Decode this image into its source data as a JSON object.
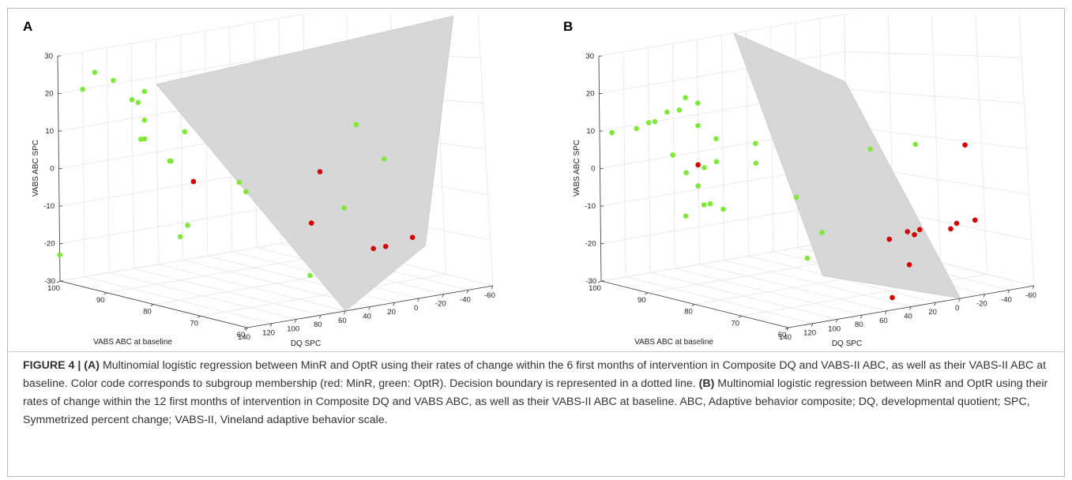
{
  "panels": [
    {
      "letter": "A",
      "chart_data": {
        "type": "scatter",
        "projection": "3d",
        "xlabel": "DQ SPC",
        "ylabel": "VABS ABC at baseline",
        "zlabel": "VABS ABC SPC",
        "xlim": [
          -60,
          140
        ],
        "ylim": [
          60,
          100
        ],
        "zlim": [
          -30,
          30
        ],
        "x_ticks": [
          140,
          120,
          100,
          80,
          60,
          40,
          20,
          0,
          -20,
          -40,
          -60
        ],
        "y_ticks": [
          100,
          90,
          80,
          70,
          60
        ],
        "z_ticks": [
          30,
          20,
          10,
          0,
          -10,
          -20,
          -30
        ],
        "grid": true,
        "colors": {
          "MinR": "#d40000",
          "OptR": "#7fe83a",
          "boundary": "#d3d3d3"
        },
        "decision_boundary": [
          [
            0,
            58,
            -18
          ],
          [
            60,
            60,
            -30
          ],
          [
            -40,
            60,
            30
          ],
          [
            60,
            100,
            18
          ]
        ],
        "series": [
          {
            "name": "MinR",
            "points": [
              [
                75,
                88,
                -5
              ],
              [
                10,
                64,
                -19
              ],
              [
                20,
                64,
                -19
              ],
              [
                -12,
                64,
                -18
              ],
              [
                10,
                80,
                -17
              ],
              [
                60,
                64,
                0
              ]
            ]
          },
          {
            "name": "OptR",
            "points": [
              [
                120,
                100,
                20
              ],
              [
                110,
                100,
                24
              ],
              [
                95,
                100,
                21
              ],
              [
                120,
                86,
                20
              ],
              [
                80,
                100,
                15
              ],
              [
                75,
                100,
                14
              ],
              [
                140,
                75,
                5
              ],
              [
                95,
                94,
                6
              ],
              [
                0,
                72,
                7
              ],
              [
                135,
                75,
                -13
              ],
              [
                110,
                80,
                10
              ],
              [
                125,
                76,
                -11
              ],
              [
                40,
                86,
                -9
              ],
              [
                70,
                100,
                9
              ],
              [
                70,
                100,
                4
              ],
              [
                50,
                100,
                -3
              ],
              [
                60,
                82,
                -5
              ],
              [
                20,
                70,
                -11
              ],
              [
                15,
                62,
                1
              ],
              [
                50,
                70,
                -25
              ],
              [
                140,
                100,
                -23
              ]
            ]
          }
        ]
      }
    },
    {
      "letter": "B",
      "chart_data": {
        "type": "scatter",
        "projection": "3d",
        "xlabel": "DQ SPC",
        "ylabel": "VABS ABC at baseline",
        "zlabel": "VABS ABC SPC",
        "xlim": [
          -60,
          140
        ],
        "ylim": [
          60,
          100
        ],
        "zlim": [
          -30,
          30
        ],
        "x_ticks": [
          140,
          120,
          100,
          80,
          60,
          40,
          20,
          0,
          -20,
          -40,
          -60
        ],
        "y_ticks": [
          100,
          90,
          80,
          70,
          60
        ],
        "z_ticks": [
          30,
          20,
          10,
          0,
          -10,
          -20,
          -30
        ],
        "grid": true,
        "colors": {
          "MinR": "#d40000",
          "OptR": "#7fe83a",
          "boundary": "#d3d3d3"
        },
        "decision_boundary": [
          [
            110,
            60,
            -20
          ],
          [
            0,
            60,
            -30
          ],
          [
            30,
            100,
            30
          ],
          [
            -60,
            100,
            12
          ]
        ],
        "series": [
          {
            "name": "MinR",
            "points": [
              [
                75,
                96,
                -2
              ],
              [
                -25,
                64,
                2
              ],
              [
                -30,
                64,
                -15
              ],
              [
                -15,
                64,
                -15
              ],
              [
                -10,
                64,
                -16
              ],
              [
                15,
                64,
                -15
              ],
              [
                25,
                64,
                -15
              ],
              [
                40,
                64,
                -16
              ],
              [
                -10,
                72,
                -19
              ],
              [
                10,
                68,
                -24
              ],
              [
                40,
                64,
                -29
              ]
            ]
          },
          {
            "name": "OptR",
            "points": [
              [
                130,
                100,
                9
              ],
              [
                110,
                100,
                9
              ],
              [
                100,
                100,
                10
              ],
              [
                95,
                100,
                10
              ],
              [
                85,
                100,
                12
              ],
              [
                70,
                100,
                15
              ],
              [
                75,
                100,
                12
              ],
              [
                60,
                100,
                13
              ],
              [
                60,
                100,
                7
              ],
              [
                110,
                92,
                3
              ],
              [
                60,
                96,
                4
              ],
              [
                50,
                90,
                3
              ],
              [
                50,
                90,
                -2
              ],
              [
                60,
                96,
                -2
              ],
              [
                70,
                96,
                -3
              ],
              [
                70,
                100,
                -5
              ],
              [
                90,
                92,
                -6
              ],
              [
                115,
                84,
                -8
              ],
              [
                110,
                84,
                -8
              ],
              [
                130,
                84,
                -10
              ],
              [
                40,
                84,
                -10
              ],
              [
                70,
                92,
                -13
              ],
              [
                15,
                64,
                4
              ],
              [
                30,
                70,
                3
              ],
              [
                70,
                74,
                -21
              ],
              [
                35,
                80,
                -18
              ]
            ]
          }
        ]
      }
    }
  ],
  "caption": {
    "figure_label": "FIGURE 4 | ",
    "a_tag": "(A)",
    "a_text": " Multinomial logistic regression between MinR and OptR using their rates of change within the 6 first months of intervention in Composite DQ and VABS-II ABC, as well as their VABS-II ABC at baseline. Color code corresponds to subgroup membership (red: MinR, green: OptR). Decision boundary is represented in a dotted line. ",
    "b_tag": "(B)",
    "b_text": " Multinomial logistic regression between MinR and OptR using their rates of change within the 12 first months of intervention in Composite DQ and VABS ABC, as well as their VABS-II ABC at baseline. ABC, Adaptive behavior composite; DQ, developmental quotient; SPC, Symmetrized percent change; VABS-II, Vineland adaptive behavior scale."
  }
}
